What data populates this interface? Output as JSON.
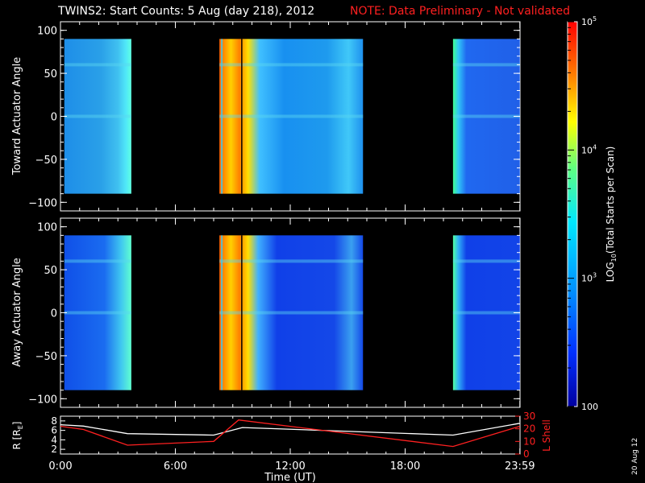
{
  "title": {
    "main": "TWINS2: Start Counts:  5 Aug (day 218), 2012",
    "note": "NOTE: Data Preliminary - Not validated"
  },
  "side_date": "20 Aug 12",
  "chart_data": [
    {
      "type": "heatmap",
      "ylabel": "Toward Actuator Angle",
      "ylim": [
        -110,
        110
      ],
      "yticks": [
        100,
        50,
        0,
        -50,
        -100
      ],
      "xlim": [
        0,
        24
      ],
      "xticks": [
        "0:00",
        "6:00",
        "12:00",
        "18:00",
        "23:59"
      ],
      "coverage": [
        [
          0.2,
          3.7
        ],
        [
          8.3,
          15.8
        ],
        [
          20.5,
          23.99
        ]
      ],
      "angle_range": [
        -90,
        90
      ]
    },
    {
      "type": "heatmap",
      "ylabel": "Away Actuator Angle",
      "ylim": [
        -110,
        110
      ],
      "yticks": [
        100,
        50,
        0,
        -50,
        -100
      ],
      "xlim": [
        0,
        24
      ],
      "xticks": [
        "0:00",
        "6:00",
        "12:00",
        "18:00",
        "23:59"
      ],
      "coverage": [
        [
          0.2,
          3.7
        ],
        [
          8.3,
          15.8
        ],
        [
          20.5,
          23.99
        ]
      ],
      "angle_range": [
        -90,
        90
      ]
    },
    {
      "type": "line",
      "xlabel": "Time (UT)",
      "xticks": [
        "0:00",
        "6:00",
        "12:00",
        "18:00",
        "23:59"
      ],
      "ylabel_left": "R [R",
      "ylabel_left_sub": "E",
      "ylabel_left_end": "]",
      "yticks_left": [
        "8",
        "6",
        "4",
        "2"
      ],
      "ylim_left": [
        1,
        9
      ],
      "ylabel_right": "L Shell",
      "yticks_right": [
        "30",
        "20",
        "10",
        "0"
      ],
      "ylim_right": [
        0,
        30
      ],
      "series": [
        {
          "color": "#ffffff",
          "x": [
            0,
            1.2,
            3.5,
            8,
            9.5,
            20.5,
            23.99
          ],
          "y": [
            7.2,
            6.9,
            5.3,
            5.0,
            6.6,
            5.0,
            7.5
          ]
        },
        {
          "color": "#ff2020",
          "x": [
            0,
            1.2,
            3.5,
            8,
            9.3,
            20.5,
            23.99
          ],
          "y": [
            22,
            19.5,
            7,
            10,
            27,
            6,
            22
          ],
          "axis": "right"
        }
      ]
    }
  ],
  "colorbar": {
    "label_pre": "LOG",
    "label_sub": "10",
    "label_post": "(Total Starts per Scan)",
    "ticks": [
      {
        "base": "10",
        "exp": "5",
        "value": 100000
      },
      {
        "base": "10",
        "exp": "4",
        "value": 10000
      },
      {
        "base": "10",
        "exp": "3",
        "value": 1000
      },
      {
        "base": "100",
        "exp": "",
        "value": 100
      }
    ],
    "colors": [
      "#0000a0",
      "#0030ff",
      "#00a0ff",
      "#00f0ff",
      "#60ff60",
      "#ffff00",
      "#ff8000",
      "#ff0000"
    ]
  }
}
